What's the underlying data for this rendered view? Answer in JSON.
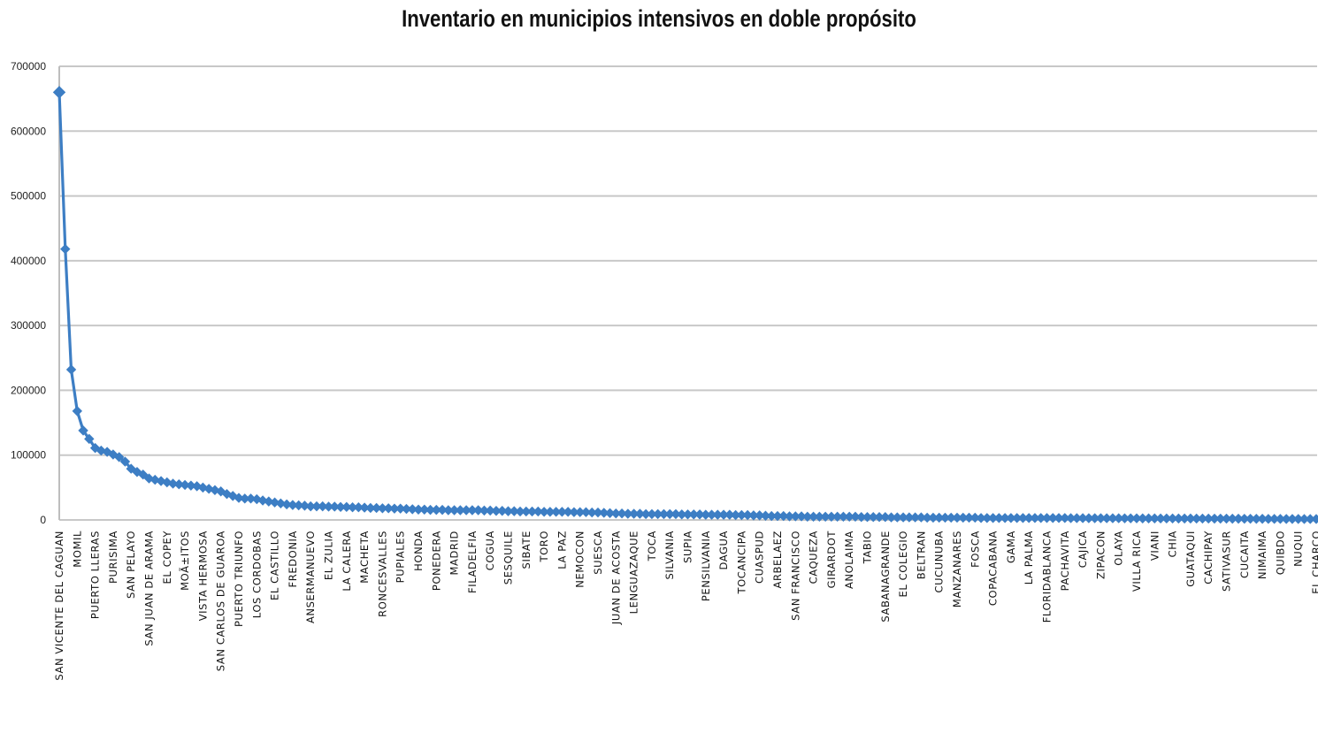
{
  "chart_data": {
    "type": "line",
    "title": "Inventario en municipios intensivos en doble propósito",
    "xlabel": "",
    "ylabel": "",
    "ylim": [
      0,
      700000
    ],
    "y_ticks": [
      0,
      100000,
      200000,
      300000,
      400000,
      500000,
      600000,
      700000
    ],
    "grid": true,
    "legend": "none",
    "series_color": "#3d7ec4",
    "categories": [
      "SAN VICENTE DEL CAGUAN",
      "MOMIL",
      "PUERTO LLERAS",
      "PURISIMA",
      "SAN PELAYO",
      "SAN JUAN DE ARAMA",
      "EL COPEY",
      "MOÃ±ITOS",
      "VISTA HERMOSA",
      "SAN CARLOS DE GUAROA",
      "PUERTO TRIUNFO",
      "LOS CORDOBAS",
      "EL CASTILLO",
      "FREDONIA",
      "ANSERMANUEVO",
      "EL ZULIA",
      "LA CALERA",
      "MACHETA",
      "RONCESVALLES",
      "PUPIALES",
      "HONDA",
      "PONEDERA",
      "MADRID",
      "FILADELFIA",
      "COGUA",
      "SESQUILE",
      "SIBATE",
      "TORO",
      "LA PAZ",
      "NEMOCON",
      "SUESCA",
      "JUAN DE ACOSTA",
      "LENGUAZAQUE",
      "TOCA",
      "SILVANIA",
      "SUPIA",
      "PENSILVANIA",
      "DAGUA",
      "TOCANCIPA",
      "CUASPUD",
      "ARBELAEZ",
      "SAN FRANCISCO",
      "CAQUEZA",
      "GIRARDOT",
      "ANOLAIMA",
      "TABIO",
      "SABANAGRANDE",
      "EL COLEGIO",
      "BELTRAN",
      "CUCUNUBA",
      "MANZANARES",
      "FOSCA",
      "COPACABANA",
      "GAMA",
      "LA PALMA",
      "FLORIDABLANCA",
      "PACHAVITA",
      "CAJICA",
      "ZIPACON",
      "OLAYA",
      "VILLA RICA",
      "VIANI",
      "CHIA",
      "GUATAQUI",
      "CACHIPAY",
      "SATIVASUR",
      "CUCAITA",
      "NIMAIMA",
      "QUIBDO",
      "NUQUI",
      "EL CHARCO"
    ],
    "values": [
      660000,
      168000,
      111000,
      101000,
      79000,
      64000,
      58000,
      54000,
      50000,
      44000,
      34000,
      32000,
      27000,
      23000,
      21000,
      20500,
      20000,
      19000,
      18000,
      17500,
      16000,
      15500,
      15000,
      15000,
      14500,
      13500,
      13000,
      12500,
      12500,
      12000,
      11500,
      10000,
      9500,
      9000,
      9000,
      8500,
      8000,
      8000,
      7500,
      7000,
      6000,
      5500,
      5000,
      5000,
      5000,
      4500,
      4500,
      4000,
      4000,
      3500,
      3500,
      3500,
      3000,
      3000,
      3000,
      3000,
      3000,
      2800,
      2700,
      2600,
      2500,
      2400,
      2300,
      2200,
      2100,
      2000,
      1800,
      1700,
      1600,
      1500,
      1400
    ],
    "intermediate_points": [
      [
        418000,
        232000
      ],
      [
        138000,
        125000
      ],
      [
        107000,
        105000
      ],
      [
        97000,
        90000
      ],
      [
        74000,
        70000
      ],
      [
        62000,
        60000
      ],
      [
        56000,
        55000
      ],
      [
        53000,
        52000
      ],
      [
        48000,
        46000
      ],
      [
        40000,
        37000
      ],
      [
        33000,
        33000
      ],
      [
        30000,
        28500
      ],
      [
        25500,
        24000
      ],
      [
        22500,
        22000
      ],
      [
        21000,
        21000
      ],
      [
        20500,
        20000
      ],
      [
        19500,
        19500
      ],
      [
        18500,
        18500
      ],
      [
        18000,
        17500
      ],
      [
        17000,
        16500
      ],
      [
        16000,
        15500
      ],
      [
        15500,
        15000
      ],
      [
        15000,
        15000
      ],
      [
        15000,
        14500
      ],
      [
        14000,
        14000
      ],
      [
        13500,
        13000
      ],
      [
        13000,
        13000
      ],
      [
        12500,
        12500
      ],
      [
        12500,
        12000
      ],
      [
        12000,
        11500
      ],
      [
        11000,
        10500
      ],
      [
        10000,
        9500
      ],
      [
        9500,
        9000
      ],
      [
        9000,
        9000
      ],
      [
        9000,
        8500
      ],
      [
        8500,
        8500
      ],
      [
        8000,
        8000
      ],
      [
        8000,
        7500
      ],
      [
        7500,
        7000
      ],
      [
        6500,
        6000
      ],
      [
        6000,
        5500
      ],
      [
        5500,
        5000
      ],
      [
        5000,
        5000
      ],
      [
        5000,
        5000
      ],
      [
        5000,
        4500
      ],
      [
        4500,
        4500
      ],
      [
        4000,
        4000
      ],
      [
        4000,
        4000
      ],
      [
        3500,
        3500
      ],
      [
        3500,
        3500
      ],
      [
        3500,
        3500
      ],
      [
        3000,
        3000
      ],
      [
        3000,
        3000
      ],
      [
        3000,
        3000
      ],
      [
        3000,
        3000
      ],
      [
        3000,
        3000
      ],
      [
        2800,
        2800
      ],
      [
        2700,
        2700
      ],
      [
        2600,
        2600
      ],
      [
        2500,
        2500
      ],
      [
        2400,
        2400
      ],
      [
        2300,
        2300
      ],
      [
        2200,
        2200
      ],
      [
        2100,
        2100
      ],
      [
        2000,
        2000
      ],
      [
        1900,
        1900
      ],
      [
        1800,
        1700
      ],
      [
        1600,
        1600
      ],
      [
        1500,
        1500
      ],
      [
        1400,
        1400
      ]
    ]
  }
}
